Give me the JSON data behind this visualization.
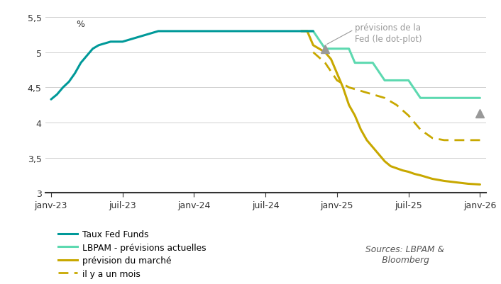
{
  "ylabel": "%",
  "ylim": [
    3.0,
    5.55
  ],
  "yticks": [
    3.0,
    3.5,
    4.0,
    4.5,
    5.0,
    5.5
  ],
  "ytick_labels": [
    "3",
    "3,5",
    "4",
    "4,5",
    "5",
    "5,5"
  ],
  "xtick_positions": [
    0,
    6,
    12,
    18,
    24,
    30,
    36
  ],
  "xtick_labels": [
    "janv-23",
    "juil-23",
    "janv-24",
    "juil-24",
    "janv-25",
    "juil-25",
    "janv-26"
  ],
  "color_fed_funds": "#009999",
  "color_lbpam": "#5DD9B0",
  "color_marche": "#C8A800",
  "color_gray": "#999999",
  "background": "#ffffff",
  "legend_labels": [
    "Taux Fed Funds",
    "LBPAM - prévisions actuelles",
    "prévision du marché",
    "il y a un mois"
  ],
  "annotation_text": "prévisions de la\nFed (le dot-plot)",
  "source_text": "Sources: LBPAM &\n      Bloomberg",
  "fed_funds_x": [
    0,
    0.5,
    1,
    1.5,
    2,
    2.5,
    3,
    3.5,
    4,
    5,
    6,
    7,
    8,
    9,
    10,
    11,
    12,
    13,
    14,
    15,
    16,
    17,
    18,
    19,
    20,
    21,
    21.5,
    22
  ],
  "fed_funds_y": [
    4.33,
    4.4,
    4.5,
    4.58,
    4.7,
    4.85,
    4.95,
    5.05,
    5.1,
    5.15,
    5.15,
    5.2,
    5.25,
    5.3,
    5.3,
    5.3,
    5.3,
    5.3,
    5.3,
    5.3,
    5.3,
    5.3,
    5.3,
    5.3,
    5.3,
    5.3,
    5.3,
    5.3
  ],
  "lbpam_x": [
    21,
    22,
    23,
    24,
    25,
    25.5,
    26,
    27,
    28,
    28.5,
    29,
    30,
    31,
    32,
    33,
    34,
    35,
    36
  ],
  "lbpam_y": [
    5.3,
    5.3,
    5.05,
    5.05,
    5.05,
    4.85,
    4.85,
    4.85,
    4.6,
    4.6,
    4.6,
    4.6,
    4.35,
    4.35,
    4.35,
    4.35,
    4.35,
    4.35
  ],
  "market_x": [
    21,
    21.5,
    22,
    22.5,
    23,
    23.5,
    24,
    24.5,
    25,
    25.5,
    26,
    26.5,
    27,
    27.5,
    28,
    28.5,
    29,
    29.5,
    30,
    30.5,
    31,
    32,
    33,
    34,
    35,
    36
  ],
  "market_y": [
    5.3,
    5.3,
    5.1,
    5.05,
    5.0,
    4.9,
    4.7,
    4.5,
    4.25,
    4.1,
    3.9,
    3.75,
    3.65,
    3.55,
    3.45,
    3.38,
    3.35,
    3.32,
    3.3,
    3.27,
    3.25,
    3.2,
    3.17,
    3.15,
    3.13,
    3.12
  ],
  "one_month_x": [
    22,
    23,
    24,
    25,
    26,
    27,
    28,
    29,
    30,
    31,
    32,
    33,
    34,
    35,
    36
  ],
  "one_month_y": [
    5.0,
    4.85,
    4.6,
    4.5,
    4.45,
    4.4,
    4.35,
    4.25,
    4.1,
    3.9,
    3.78,
    3.75,
    3.75,
    3.75,
    3.75
  ],
  "dot1_x": 23,
  "dot1_y": 5.05,
  "dot2_x": 36,
  "dot2_y": 4.13
}
